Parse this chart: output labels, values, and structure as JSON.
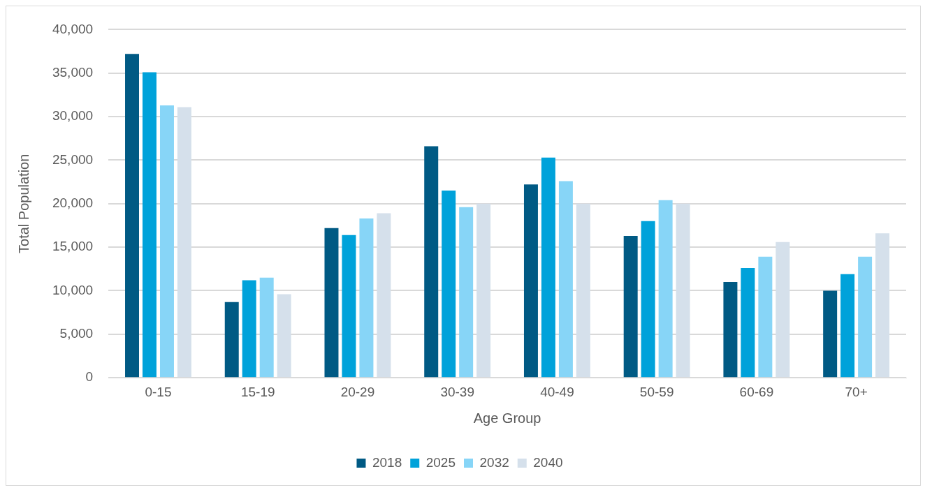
{
  "chart_data": {
    "type": "bar",
    "xlabel": "Age Group",
    "ylabel": "Total Population",
    "categories": [
      "0-15",
      "15-19",
      "20-29",
      "30-39",
      "40-49",
      "50-59",
      "60-69",
      "70+"
    ],
    "series": [
      {
        "name": "2018",
        "color": "#005a84",
        "values": [
          37200,
          8700,
          17200,
          26600,
          22200,
          16300,
          11000,
          10000
        ]
      },
      {
        "name": "2025",
        "color": "#00a2da",
        "values": [
          35100,
          11200,
          16400,
          21500,
          25300,
          18000,
          12600,
          11900
        ]
      },
      {
        "name": "2032",
        "color": "#87d5f7",
        "values": [
          31300,
          11500,
          18300,
          19600,
          22600,
          20400,
          13900,
          13900
        ]
      },
      {
        "name": "2040",
        "color": "#d5e0eb",
        "values": [
          31100,
          9600,
          18900,
          20000,
          20000,
          20000,
          15600,
          16600
        ]
      }
    ],
    "ylim": [
      0,
      40000
    ],
    "yticks": [
      {
        "value": 0,
        "label": "0"
      },
      {
        "value": 5000,
        "label": "5,000"
      },
      {
        "value": 10000,
        "label": "10,000"
      },
      {
        "value": 15000,
        "label": "15,000"
      },
      {
        "value": 20000,
        "label": "20,000"
      },
      {
        "value": 25000,
        "label": "25,000"
      },
      {
        "value": 30000,
        "label": "30,000"
      },
      {
        "value": 35000,
        "label": "35,000"
      },
      {
        "value": 40000,
        "label": "40,000"
      }
    ],
    "grid": "y",
    "legend": "bottom"
  }
}
